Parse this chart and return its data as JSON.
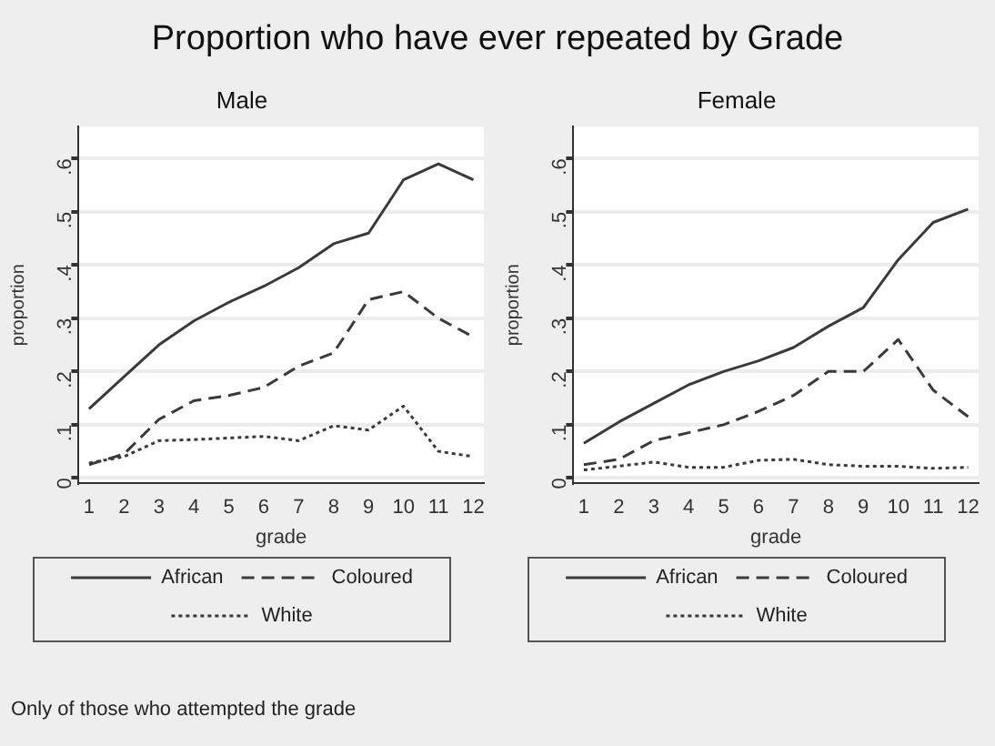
{
  "chart_data": [
    {
      "type": "line",
      "title": "Proportion who have ever repeated by Grade",
      "subtitle": "Male",
      "xlabel": "grade",
      "ylabel": "proportion",
      "x": [
        1,
        2,
        3,
        4,
        5,
        6,
        7,
        8,
        9,
        10,
        11,
        12
      ],
      "series": [
        {
          "name": "African",
          "color": "#3a3a3a",
          "line_style": "solid",
          "values": [
            0.13,
            0.19,
            0.25,
            0.295,
            0.33,
            0.36,
            0.395,
            0.44,
            0.46,
            0.56,
            0.59,
            0.56
          ]
        },
        {
          "name": "Coloured",
          "color": "#3a3a3a",
          "line_style": "dashed",
          "values": [
            0.025,
            0.045,
            0.11,
            0.145,
            0.155,
            0.17,
            0.21,
            0.235,
            0.335,
            0.35,
            0.3,
            0.265
          ]
        },
        {
          "name": "White",
          "color": "#3a3a3a",
          "line_style": "dotted",
          "values": [
            0.028,
            0.04,
            0.07,
            0.072,
            0.075,
            0.078,
            0.07,
            0.098,
            0.09,
            0.135,
            0.05,
            0.04
          ]
        }
      ],
      "xlim": [
        0.7,
        12.3
      ],
      "xticks": [
        1,
        2,
        3,
        4,
        5,
        6,
        7,
        8,
        9,
        10,
        11,
        12
      ],
      "ylim": [
        -0.01,
        0.66
      ],
      "yticks": [
        0,
        {
          "value": 0.1,
          "label": ".1"
        },
        {
          "value": 0.2,
          "label": ".2"
        },
        {
          "value": 0.3,
          "label": ".3"
        },
        {
          "value": 0.4,
          "label": ".4"
        },
        {
          "value": 0.5,
          "label": ".5"
        },
        {
          "value": 0.6,
          "label": ".6"
        }
      ],
      "grid": "y",
      "legend": "bottom",
      "marker": "none",
      "annotations": [
        "Only of those who attempted the grade"
      ]
    },
    {
      "type": "line",
      "subtitle": "Female",
      "xlabel": "grade",
      "ylabel": "proportion",
      "x": [
        1,
        2,
        3,
        4,
        5,
        6,
        7,
        8,
        9,
        10,
        11,
        12
      ],
      "series": [
        {
          "name": "African",
          "color": "#3a3a3a",
          "line_style": "solid",
          "values": [
            0.065,
            0.105,
            0.14,
            0.175,
            0.2,
            0.22,
            0.245,
            0.285,
            0.32,
            0.41,
            0.48,
            0.505
          ]
        },
        {
          "name": "Coloured",
          "color": "#3a3a3a",
          "line_style": "dashed",
          "values": [
            0.025,
            0.035,
            0.07,
            0.085,
            0.1,
            0.125,
            0.155,
            0.2,
            0.2,
            0.26,
            0.165,
            0.115
          ]
        },
        {
          "name": "White",
          "color": "#3a3a3a",
          "line_style": "dotted",
          "values": [
            0.015,
            0.022,
            0.03,
            0.02,
            0.02,
            0.033,
            0.035,
            0.025,
            0.022,
            0.022,
            0.018,
            0.02
          ]
        }
      ],
      "xlim": [
        0.7,
        12.3
      ],
      "xticks": [
        1,
        2,
        3,
        4,
        5,
        6,
        7,
        8,
        9,
        10,
        11,
        12
      ],
      "ylim": [
        -0.01,
        0.66
      ],
      "yticks": [
        0,
        {
          "value": 0.1,
          "label": ".1"
        },
        {
          "value": 0.2,
          "label": ".2"
        },
        {
          "value": 0.3,
          "label": ".3"
        },
        {
          "value": 0.4,
          "label": ".4"
        },
        {
          "value": 0.5,
          "label": ".5"
        },
        {
          "value": 0.6,
          "label": ".6"
        }
      ],
      "grid": "y",
      "legend": "bottom",
      "marker": "none"
    }
  ]
}
